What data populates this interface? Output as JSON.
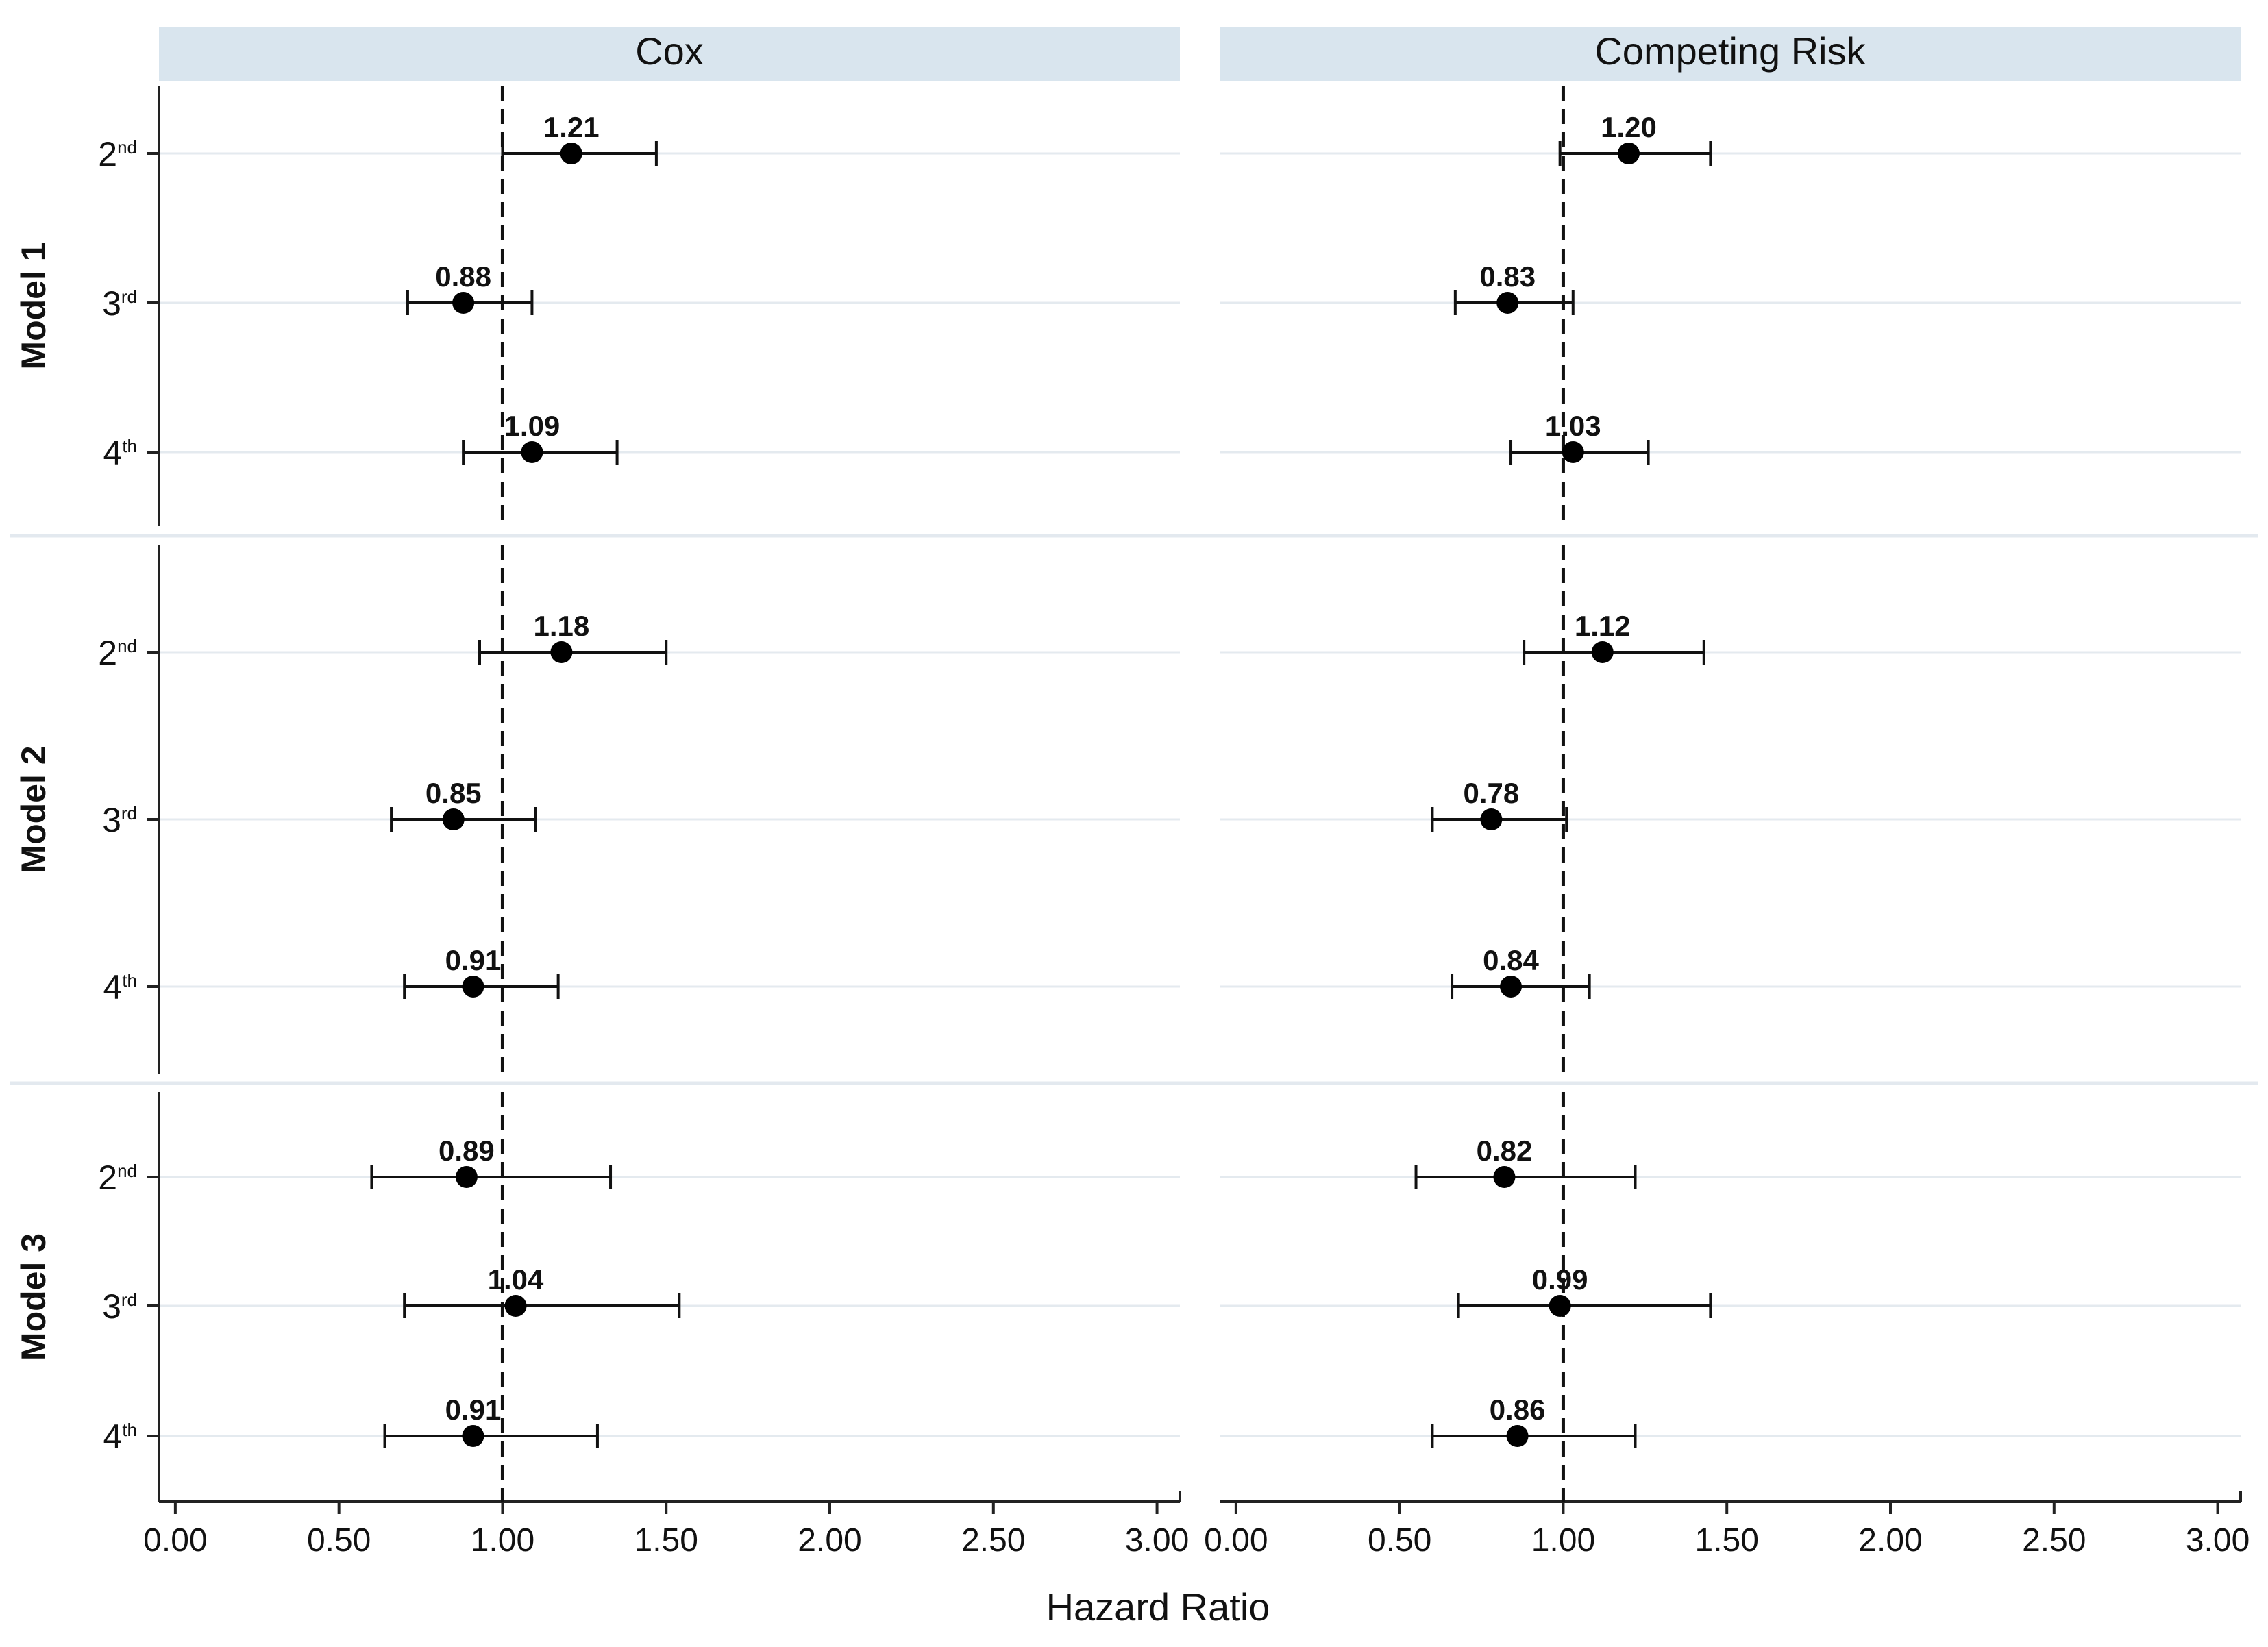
{
  "chart_data": {
    "type": "forest",
    "xlabel": "Hazard Ratio",
    "xlim": [
      -0.05,
      3.07
    ],
    "xticks": [
      0,
      0.5,
      1,
      1.5,
      2,
      2.5,
      3
    ],
    "xtick_labels": [
      "0.00",
      "0.50",
      "1.00",
      "1.50",
      "2.00",
      "2.50",
      "3.00"
    ],
    "reference_line": 1.0,
    "columns": [
      "Cox",
      "Competing Risk"
    ],
    "models": [
      {
        "name": "Model 1",
        "rows": [
          {
            "base": "2",
            "sup": "nd",
            "cox": {
              "hr": 1.21,
              "label": "1.21",
              "lo": 1.0,
              "hi": 1.47
            },
            "cr": {
              "hr": 1.2,
              "label": "1.20",
              "lo": 0.99,
              "hi": 1.45
            }
          },
          {
            "base": "3",
            "sup": "rd",
            "cox": {
              "hr": 0.88,
              "label": "0.88",
              "lo": 0.71,
              "hi": 1.09
            },
            "cr": {
              "hr": 0.83,
              "label": "0.83",
              "lo": 0.67,
              "hi": 1.03
            }
          },
          {
            "base": "4",
            "sup": "th",
            "cox": {
              "hr": 1.09,
              "label": "1.09",
              "lo": 0.88,
              "hi": 1.35
            },
            "cr": {
              "hr": 1.03,
              "label": "1.03",
              "lo": 0.84,
              "hi": 1.26
            }
          }
        ]
      },
      {
        "name": "Model 2",
        "rows": [
          {
            "base": "2",
            "sup": "nd",
            "cox": {
              "hr": 1.18,
              "label": "1.18",
              "lo": 0.93,
              "hi": 1.5
            },
            "cr": {
              "hr": 1.12,
              "label": "1.12",
              "lo": 0.88,
              "hi": 1.43
            }
          },
          {
            "base": "3",
            "sup": "rd",
            "cox": {
              "hr": 0.85,
              "label": "0.85",
              "lo": 0.66,
              "hi": 1.1
            },
            "cr": {
              "hr": 0.78,
              "label": "0.78",
              "lo": 0.6,
              "hi": 1.01
            }
          },
          {
            "base": "4",
            "sup": "th",
            "cox": {
              "hr": 0.91,
              "label": "0.91",
              "lo": 0.7,
              "hi": 1.17
            },
            "cr": {
              "hr": 0.84,
              "label": "0.84",
              "lo": 0.66,
              "hi": 1.08
            }
          }
        ]
      },
      {
        "name": "Model 3",
        "rows": [
          {
            "base": "2",
            "sup": "nd",
            "cox": {
              "hr": 0.89,
              "label": "0.89",
              "lo": 0.6,
              "hi": 1.33
            },
            "cr": {
              "hr": 0.82,
              "label": "0.82",
              "lo": 0.55,
              "hi": 1.22
            }
          },
          {
            "base": "3",
            "sup": "rd",
            "cox": {
              "hr": 1.04,
              "label": "1.04",
              "lo": 0.7,
              "hi": 1.54
            },
            "cr": {
              "hr": 0.99,
              "label": "0.99",
              "lo": 0.68,
              "hi": 1.45
            }
          },
          {
            "base": "4",
            "sup": "th",
            "cox": {
              "hr": 0.91,
              "label": "0.91",
              "lo": 0.64,
              "hi": 1.29
            },
            "cr": {
              "hr": 0.86,
              "label": "0.86",
              "lo": 0.6,
              "hi": 1.22
            }
          }
        ]
      }
    ]
  }
}
